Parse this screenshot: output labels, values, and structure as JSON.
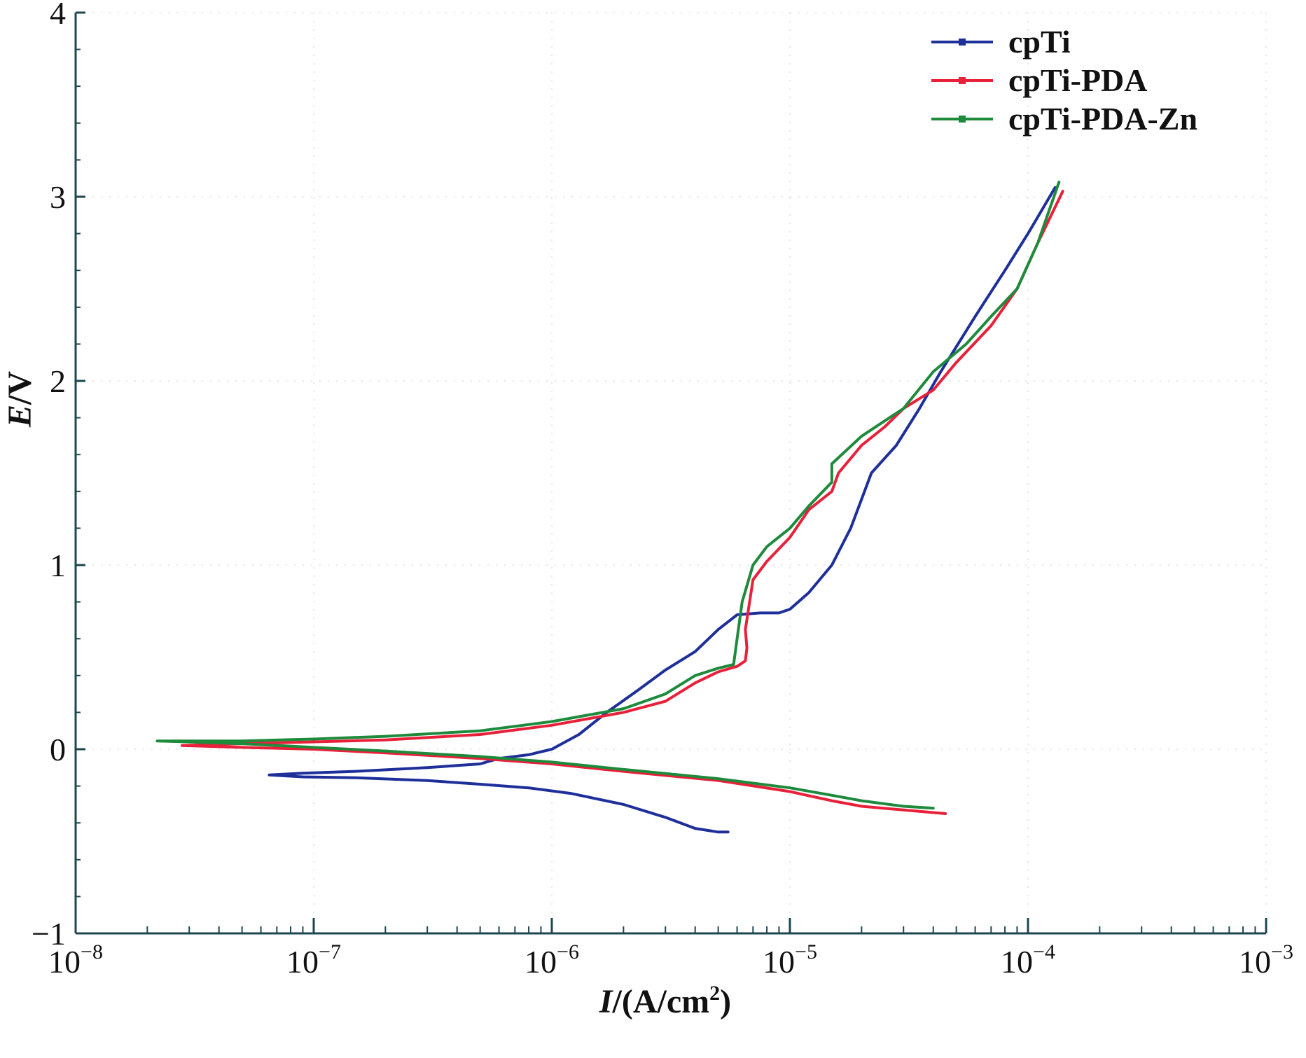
{
  "chart_data": {
    "type": "line",
    "title": "",
    "xlabel": "I/(A/cm²)",
    "xlabel_parts": {
      "var": "I",
      "unit": "/(A/cm",
      "sup": "2",
      "close": ")"
    },
    "ylabel": "E/V",
    "ylabel_parts": {
      "var": "E",
      "unit": "/V"
    },
    "x_scale": "log",
    "xlim": [
      1e-08,
      0.001
    ],
    "ylim": [
      -1,
      4
    ],
    "x_ticks": [
      {
        "value": 1e-08,
        "base": "10",
        "exp": "−8"
      },
      {
        "value": 1e-07,
        "base": "10",
        "exp": "−7"
      },
      {
        "value": 1e-06,
        "base": "10",
        "exp": "−6"
      },
      {
        "value": 1e-05,
        "base": "10",
        "exp": "−5"
      },
      {
        "value": 0.0001,
        "base": "10",
        "exp": "−4"
      },
      {
        "value": 0.001,
        "base": "10",
        "exp": "−3"
      }
    ],
    "y_ticks": [
      {
        "value": -1,
        "label": "−1"
      },
      {
        "value": 0,
        "label": "0"
      },
      {
        "value": 1,
        "label": "1"
      },
      {
        "value": 2,
        "label": "2"
      },
      {
        "value": 3,
        "label": "3"
      },
      {
        "value": 4,
        "label": "4"
      }
    ],
    "grid": "faint dotted",
    "legend_position": "top-right",
    "series": [
      {
        "name": "cpTi",
        "color": "#1f2f9a",
        "points": [
          [
            5.5e-06,
            -0.45
          ],
          [
            5e-06,
            -0.45
          ],
          [
            4e-06,
            -0.43
          ],
          [
            3e-06,
            -0.37
          ],
          [
            2e-06,
            -0.3
          ],
          [
            1.2e-06,
            -0.24
          ],
          [
            8e-07,
            -0.21
          ],
          [
            5e-07,
            -0.19
          ],
          [
            3e-07,
            -0.17
          ],
          [
            1.5e-07,
            -0.155
          ],
          [
            9e-08,
            -0.15
          ],
          [
            6.5e-08,
            -0.14
          ],
          [
            9e-08,
            -0.13
          ],
          [
            1.5e-07,
            -0.12
          ],
          [
            3e-07,
            -0.1
          ],
          [
            5e-07,
            -0.08
          ],
          [
            6e-07,
            -0.05
          ],
          [
            8e-07,
            -0.03
          ],
          [
            1e-06,
            0.0
          ],
          [
            1.3e-06,
            0.08
          ],
          [
            1.7e-06,
            0.2
          ],
          [
            2.3e-06,
            0.32
          ],
          [
            3e-06,
            0.43
          ],
          [
            4e-06,
            0.53
          ],
          [
            5e-06,
            0.65
          ],
          [
            6e-06,
            0.73
          ],
          [
            7.5e-06,
            0.74
          ],
          [
            9e-06,
            0.74
          ],
          [
            1e-05,
            0.76
          ],
          [
            1.2e-05,
            0.85
          ],
          [
            1.5e-05,
            1.0
          ],
          [
            1.8e-05,
            1.2
          ],
          [
            2.2e-05,
            1.5
          ],
          [
            2.8e-05,
            1.65
          ],
          [
            3.5e-05,
            1.85
          ],
          [
            4.3e-05,
            2.05
          ],
          [
            6e-05,
            2.35
          ],
          [
            8e-05,
            2.6
          ],
          [
            0.0001,
            2.8
          ],
          [
            0.00013,
            3.05
          ]
        ]
      },
      {
        "name": "cpTi-PDA",
        "color": "#e8203a",
        "points": [
          [
            4.5e-05,
            -0.35
          ],
          [
            3e-05,
            -0.33
          ],
          [
            2e-05,
            -0.31
          ],
          [
            1.5e-05,
            -0.28
          ],
          [
            1e-05,
            -0.23
          ],
          [
            5e-06,
            -0.17
          ],
          [
            2e-06,
            -0.12
          ],
          [
            1e-06,
            -0.08
          ],
          [
            5e-07,
            -0.05
          ],
          [
            2e-07,
            -0.02
          ],
          [
            1e-07,
            0.0
          ],
          [
            5e-08,
            0.01
          ],
          [
            2.8e-08,
            0.02
          ],
          [
            5e-08,
            0.03
          ],
          [
            1e-07,
            0.04
          ],
          [
            2e-07,
            0.05
          ],
          [
            5e-07,
            0.08
          ],
          [
            1e-06,
            0.13
          ],
          [
            2e-06,
            0.2
          ],
          [
            3e-06,
            0.26
          ],
          [
            4e-06,
            0.36
          ],
          [
            5e-06,
            0.42
          ],
          [
            6e-06,
            0.45
          ],
          [
            6.5e-06,
            0.48
          ],
          [
            6.6e-06,
            0.55
          ],
          [
            6.5e-06,
            0.65
          ],
          [
            7e-06,
            0.92
          ],
          [
            8e-06,
            1.02
          ],
          [
            1e-05,
            1.15
          ],
          [
            1.2e-05,
            1.3
          ],
          [
            1.5e-05,
            1.4
          ],
          [
            1.6e-05,
            1.5
          ],
          [
            2e-05,
            1.65
          ],
          [
            2.5e-05,
            1.75
          ],
          [
            3e-05,
            1.85
          ],
          [
            4e-05,
            1.95
          ],
          [
            5e-05,
            2.1
          ],
          [
            7e-05,
            2.3
          ],
          [
            9e-05,
            2.5
          ],
          [
            0.00011,
            2.75
          ],
          [
            0.00014,
            3.03
          ]
        ]
      },
      {
        "name": "cpTi-PDA-Zn",
        "color": "#1e8a3c",
        "points": [
          [
            4e-05,
            -0.32
          ],
          [
            3e-05,
            -0.31
          ],
          [
            2e-05,
            -0.28
          ],
          [
            1.5e-05,
            -0.25
          ],
          [
            1e-05,
            -0.21
          ],
          [
            5e-06,
            -0.16
          ],
          [
            2e-06,
            -0.11
          ],
          [
            1e-06,
            -0.07
          ],
          [
            5e-07,
            -0.04
          ],
          [
            2e-07,
            -0.01
          ],
          [
            1e-07,
            0.01
          ],
          [
            5e-08,
            0.03
          ],
          [
            2.2e-08,
            0.045
          ],
          [
            5e-08,
            0.045
          ],
          [
            1e-07,
            0.055
          ],
          [
            2e-07,
            0.07
          ],
          [
            5e-07,
            0.1
          ],
          [
            1e-06,
            0.15
          ],
          [
            2e-06,
            0.22
          ],
          [
            3e-06,
            0.3
          ],
          [
            4e-06,
            0.4
          ],
          [
            5e-06,
            0.44
          ],
          [
            5.8e-06,
            0.46
          ],
          [
            6e-06,
            0.6
          ],
          [
            6.3e-06,
            0.8
          ],
          [
            7e-06,
            1.0
          ],
          [
            8e-06,
            1.1
          ],
          [
            1e-05,
            1.2
          ],
          [
            1.2e-05,
            1.32
          ],
          [
            1.5e-05,
            1.45
          ],
          [
            1.5e-05,
            1.55
          ],
          [
            2e-05,
            1.7
          ],
          [
            3e-05,
            1.85
          ],
          [
            4e-05,
            2.05
          ],
          [
            5.5e-05,
            2.2
          ],
          [
            7e-05,
            2.35
          ],
          [
            9e-05,
            2.5
          ],
          [
            0.00011,
            2.75
          ],
          [
            0.000135,
            3.08
          ]
        ]
      }
    ]
  }
}
